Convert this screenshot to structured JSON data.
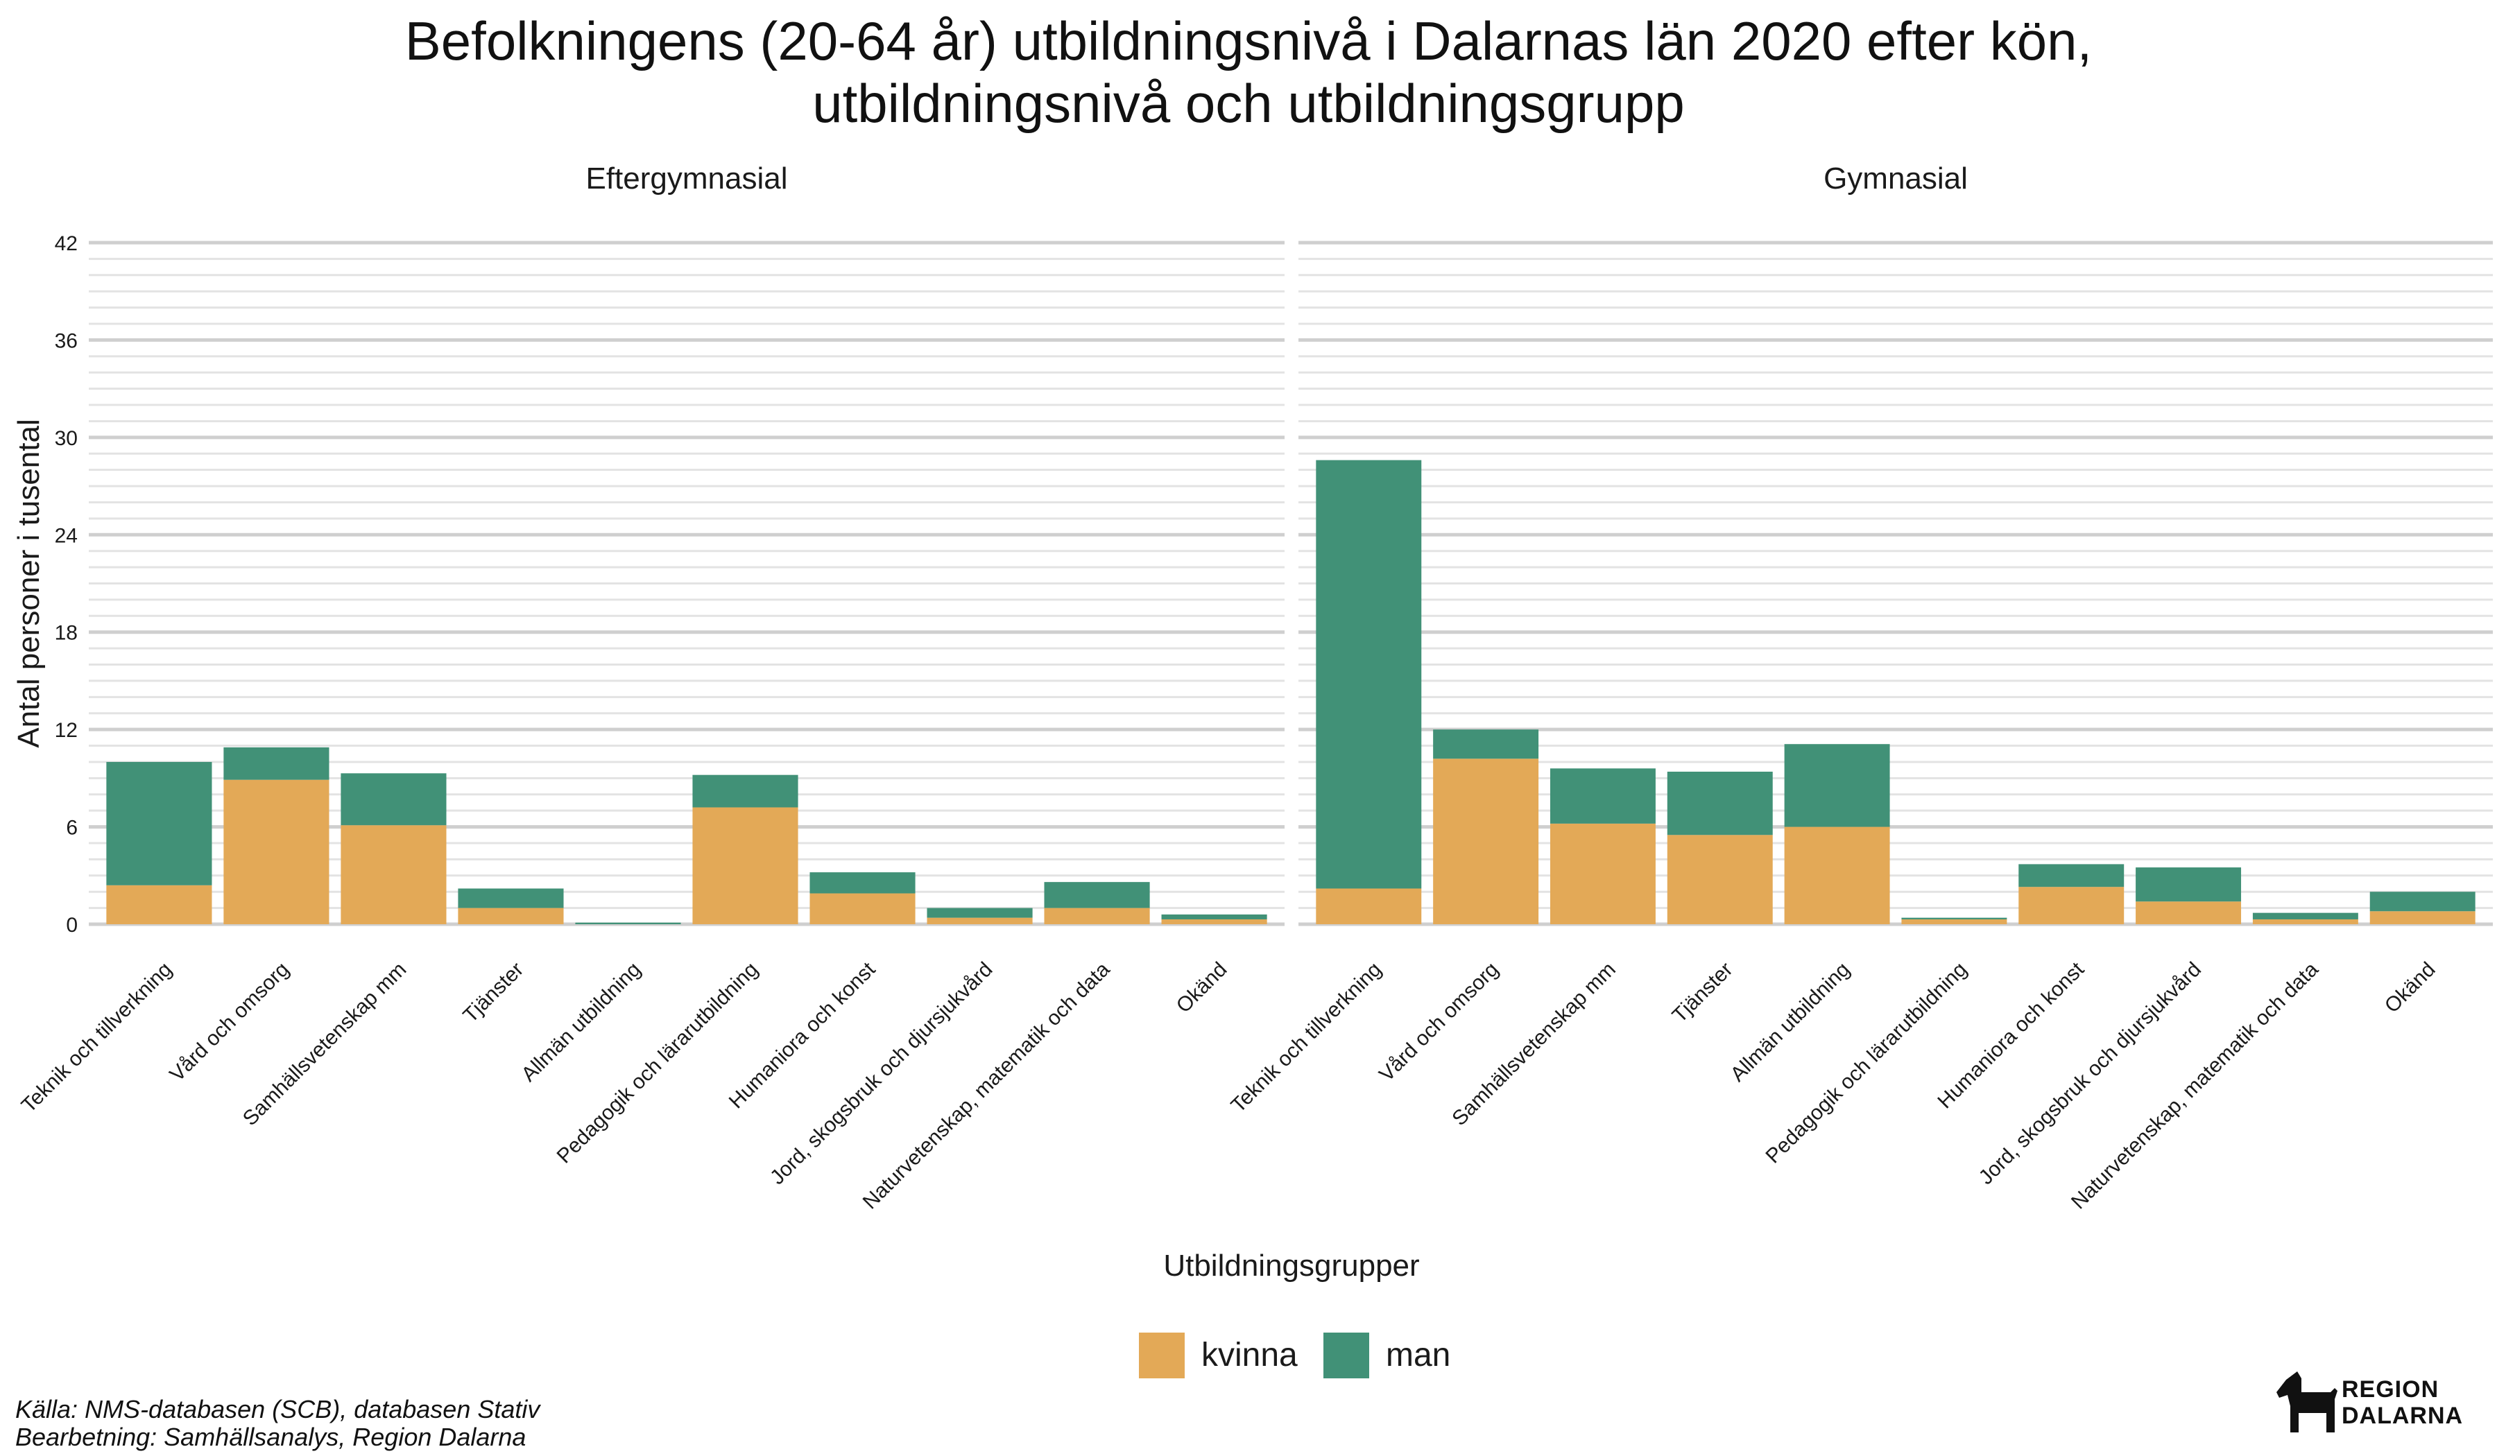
{
  "title_line1": "Befolkningens (20-64 år) utbildningsnivå i Dalarnas län 2020 efter kön,",
  "title_line2": "utbildningsnivå och utbildningsgrupp",
  "caption_line1": "Källa: NMS-databasen (SCB), databasen Stativ",
  "caption_line2": "Bearbetning: Samhällsanalys, Region Dalarna",
  "logo": {
    "line1": "REGION",
    "line2": "DALARNA"
  },
  "chart_data": {
    "type": "bar",
    "stacked": true,
    "xlabel": "Utbildningsgrupper",
    "ylabel": "Antal personer i tusental",
    "ylim": [
      0,
      42
    ],
    "y_ticks": [
      0,
      6,
      12,
      18,
      24,
      30,
      36,
      42
    ],
    "grid": true,
    "legend_position": "bottom",
    "legend": [
      {
        "name": "kvinna",
        "color": "#E3A957"
      },
      {
        "name": "man",
        "color": "#419177"
      }
    ],
    "categories": [
      "Teknik och tillverkning",
      "Vård och omsorg",
      "Samhällsvetenskap mm",
      "Tjänster",
      "Allmän utbildning",
      "Pedagogik och lärarutbildning",
      "Humaniora och konst",
      "Jord, skogsbruk och djursjukvård",
      "Naturvetenskap, matematik och data",
      "Okänd"
    ],
    "facets": [
      {
        "name": "Eftergymnasial",
        "series": [
          {
            "name": "kvinna",
            "values": [
              2.4,
              8.9,
              6.1,
              1.0,
              0.0,
              7.2,
              1.9,
              0.4,
              1.0,
              0.3
            ]
          },
          {
            "name": "man",
            "values": [
              7.6,
              2.0,
              3.2,
              1.2,
              0.1,
              2.0,
              1.3,
              0.6,
              1.6,
              0.3
            ]
          }
        ]
      },
      {
        "name": "Gymnasial",
        "series": [
          {
            "name": "kvinna",
            "values": [
              2.2,
              10.2,
              6.2,
              5.5,
              6.0,
              0.3,
              2.3,
              1.4,
              0.3,
              0.8
            ]
          },
          {
            "name": "man",
            "values": [
              26.4,
              1.8,
              3.4,
              3.9,
              5.1,
              0.1,
              1.4,
              2.1,
              0.4,
              1.2
            ]
          }
        ]
      }
    ]
  }
}
